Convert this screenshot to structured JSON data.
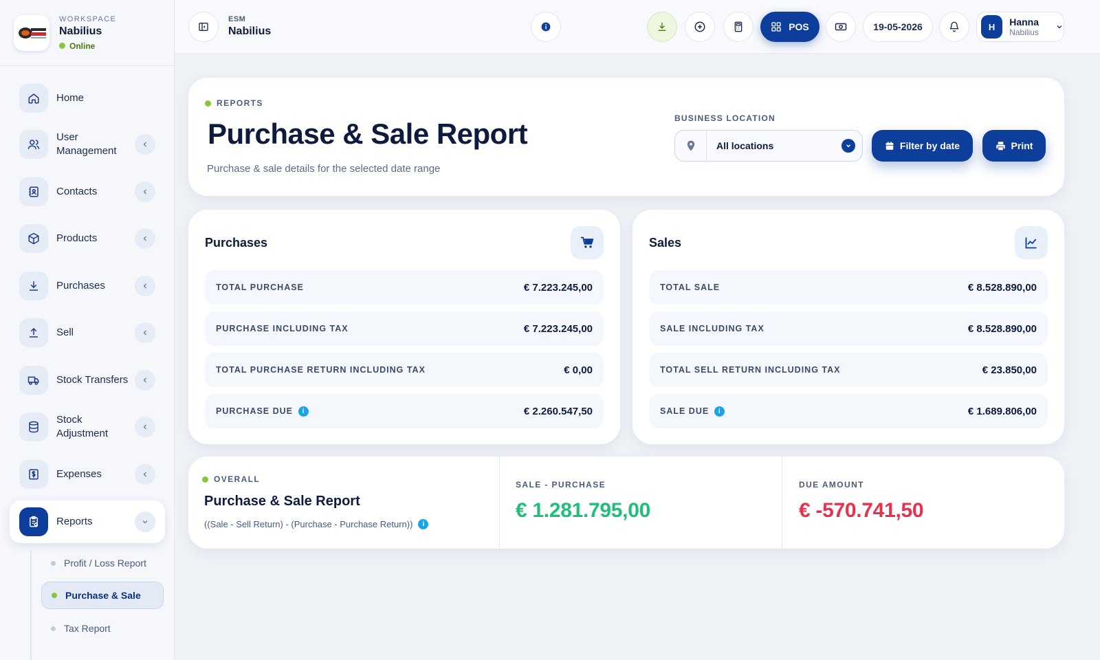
{
  "workspace": {
    "caption": "WORKSPACE",
    "name": "Nabilius",
    "status": "Online",
    "logo_text": "NABILIUS"
  },
  "sidebar": {
    "items": [
      {
        "label": "Home",
        "icon": "home-icon",
        "has_chevron": false
      },
      {
        "label": "User Management",
        "icon": "users-icon",
        "has_chevron": true
      },
      {
        "label": "Contacts",
        "icon": "address-book-icon",
        "has_chevron": true
      },
      {
        "label": "Products",
        "icon": "box-icon",
        "has_chevron": true
      },
      {
        "label": "Purchases",
        "icon": "download-icon",
        "has_chevron": true
      },
      {
        "label": "Sell",
        "icon": "upload-icon",
        "has_chevron": true
      },
      {
        "label": "Stock Transfers",
        "icon": "truck-icon",
        "has_chevron": true
      },
      {
        "label": "Stock Adjustment",
        "icon": "database-icon",
        "has_chevron": true
      },
      {
        "label": "Expenses",
        "icon": "dollar-doc-icon",
        "has_chevron": true
      },
      {
        "label": "Reports",
        "icon": "clipboard-icon",
        "has_chevron": true,
        "active": true
      }
    ],
    "subitems": [
      {
        "label": "Profit / Loss Report"
      },
      {
        "label": "Purchase & Sale",
        "active": true
      },
      {
        "label": "Tax Report"
      }
    ]
  },
  "topbar": {
    "context_small": "ESM",
    "context_name": "Nabilius",
    "pos_label": "POS",
    "date": "19-05-2026",
    "user": {
      "initial": "H",
      "name": "Hanna",
      "org": "Nabilius"
    }
  },
  "header": {
    "eyebrow": "REPORTS",
    "title": "Purchase & Sale Report",
    "subtitle": "Purchase & sale details for the selected date range",
    "location_label": "BUSINESS LOCATION",
    "location_value": "All locations",
    "filter_label": "Filter by date",
    "print_label": "Print"
  },
  "purchases": {
    "title": "Purchases",
    "rows": [
      {
        "label": "TOTAL PURCHASE",
        "value": "€ 7.223.245,00"
      },
      {
        "label": "PURCHASE INCLUDING TAX",
        "value": "€ 7.223.245,00"
      },
      {
        "label": "TOTAL PURCHASE RETURN INCLUDING TAX",
        "value": "€ 0,00"
      },
      {
        "label": "PURCHASE DUE",
        "value": "€ 2.260.547,50"
      }
    ]
  },
  "sales": {
    "title": "Sales",
    "rows": [
      {
        "label": "TOTAL SALE",
        "value": "€ 8.528.890,00"
      },
      {
        "label": "SALE INCLUDING TAX",
        "value": "€ 8.528.890,00"
      },
      {
        "label": "TOTAL SELL RETURN INCLUDING TAX",
        "value": "€ 23.850,00"
      },
      {
        "label": "SALE DUE",
        "value": "€ 1.689.806,00"
      }
    ]
  },
  "overall": {
    "eyebrow": "OVERALL",
    "title": "Purchase & Sale Report",
    "formula": "((Sale - Sell Return) - (Purchase - Purchase Return))",
    "sale_minus_purchase_label": "SALE - PURCHASE",
    "sale_minus_purchase_value": "€ 1.281.795,00",
    "due_label": "DUE AMOUNT",
    "due_value": "€ -570.741,50"
  },
  "colors": {
    "primary": "#0d3e9b",
    "positive": "#1fbf7a",
    "negative": "#e8314f",
    "online": "#8ac53e",
    "info": "#16a6e8"
  }
}
